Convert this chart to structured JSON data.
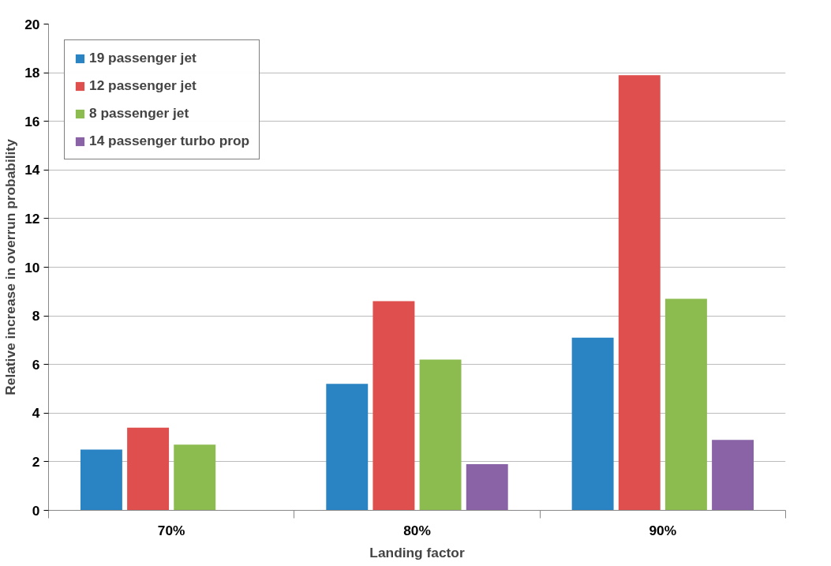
{
  "chart_data": {
    "type": "bar",
    "xlabel": "Landing factor",
    "ylabel": "Relative increase in overrun probability",
    "categories": [
      "70%",
      "80%",
      "90%"
    ],
    "series": [
      {
        "name": "19 passenger jet",
        "color": "#2a83c3",
        "values": [
          2.5,
          5.2,
          7.1
        ]
      },
      {
        "name": "12 passenger jet",
        "color": "#de4f4d",
        "values": [
          3.4,
          8.6,
          17.9
        ]
      },
      {
        "name": "8 passenger jet",
        "color": "#8cbc4f",
        "values": [
          2.7,
          6.2,
          8.7
        ]
      },
      {
        "name": "14 passenger turbo prop",
        "color": "#8a63a6",
        "values": [
          null,
          1.9,
          2.9
        ]
      }
    ],
    "ylim": [
      0,
      20
    ],
    "yticks": [
      0,
      2,
      4,
      6,
      8,
      10,
      12,
      14,
      16,
      18,
      20
    ],
    "grid": "y",
    "legend": "top left"
  }
}
